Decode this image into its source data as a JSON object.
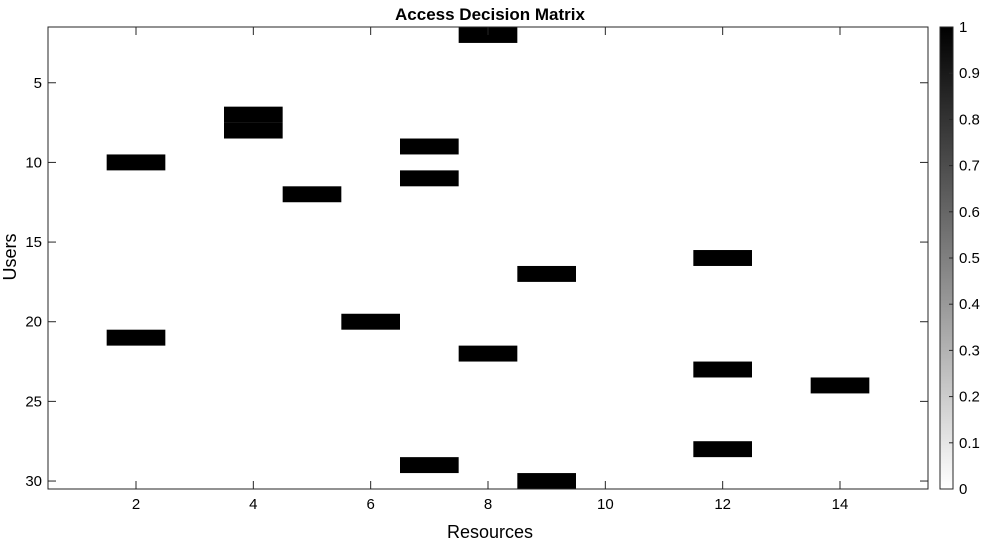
{
  "chart_data": {
    "type": "heatmap",
    "title": "Access Decision Matrix",
    "xlabel": "Resources",
    "ylabel": "Users",
    "xlim": [
      0.5,
      15.5
    ],
    "ylim": [
      1.5,
      30.5
    ],
    "y_reversed": true,
    "x_ticks": [
      2,
      4,
      6,
      8,
      10,
      12,
      14
    ],
    "y_ticks": [
      5,
      10,
      15,
      20,
      25,
      30
    ],
    "colormap": "gray-reversed",
    "colorbar": {
      "range": [
        0,
        1
      ],
      "ticks": [
        "0",
        "0.1",
        "0.2",
        "0.3",
        "0.4",
        "0.5",
        "0.6",
        "0.7",
        "0.8",
        "0.9",
        "1"
      ]
    },
    "cells": [
      {
        "x": 8,
        "y": 2,
        "value": 1
      },
      {
        "x": 4,
        "y": 7,
        "value": 1
      },
      {
        "x": 4,
        "y": 8,
        "value": 1
      },
      {
        "x": 7,
        "y": 9,
        "value": 1
      },
      {
        "x": 2,
        "y": 10,
        "value": 1
      },
      {
        "x": 7,
        "y": 11,
        "value": 1
      },
      {
        "x": 5,
        "y": 12,
        "value": 1
      },
      {
        "x": 12,
        "y": 16,
        "value": 1
      },
      {
        "x": 9,
        "y": 17,
        "value": 1
      },
      {
        "x": 6,
        "y": 20,
        "value": 1
      },
      {
        "x": 2,
        "y": 21,
        "value": 1
      },
      {
        "x": 8,
        "y": 22,
        "value": 1
      },
      {
        "x": 12,
        "y": 23,
        "value": 1
      },
      {
        "x": 14,
        "y": 24,
        "value": 1
      },
      {
        "x": 12,
        "y": 28,
        "value": 1
      },
      {
        "x": 7,
        "y": 29,
        "value": 1
      },
      {
        "x": 9,
        "y": 30,
        "value": 1
      }
    ],
    "default_value": 0,
    "colors": {
      "on": "#000000",
      "off": "#ffffff",
      "axis": "#262626"
    }
  }
}
